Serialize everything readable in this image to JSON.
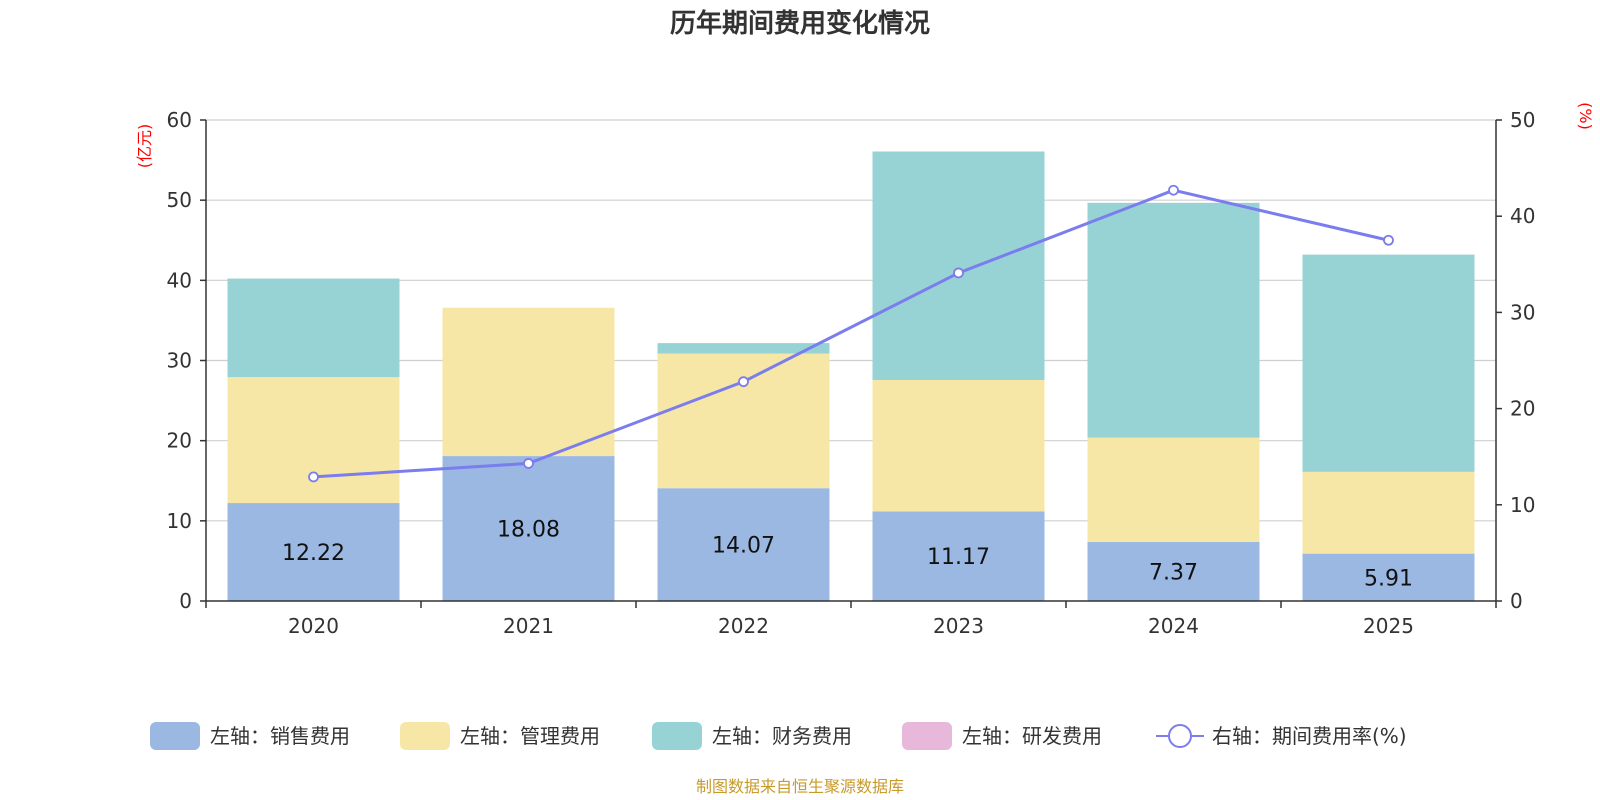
{
  "chart_data": {
    "type": "bar",
    "title": "历年期间费用变化情况",
    "categories": [
      "2020",
      "2021",
      "2022",
      "2023",
      "2024",
      "2025"
    ],
    "left_axis": {
      "unit": "(亿元)",
      "ylim": [
        0,
        60
      ],
      "ticks": [
        0,
        10,
        20,
        30,
        40,
        50,
        60
      ]
    },
    "right_axis": {
      "unit": "(%)",
      "ylim": [
        0,
        50
      ],
      "ticks": [
        0,
        10,
        20,
        30,
        40,
        50
      ]
    },
    "series": [
      {
        "name": "左轴：销售费用",
        "kind": "bar",
        "axis": "left",
        "color": "#9bb8e3",
        "values": [
          12.22,
          18.08,
          14.07,
          11.17,
          7.37,
          5.91
        ],
        "labels": [
          "12.22",
          "18.08",
          "14.07",
          "11.17",
          "7.37",
          "5.91"
        ]
      },
      {
        "name": "左轴：管理费用",
        "kind": "bar",
        "axis": "left",
        "color": "#f7e7a6",
        "values": [
          15.7,
          18.5,
          16.8,
          16.4,
          13.0,
          10.2
        ]
      },
      {
        "name": "左轴：财务费用",
        "kind": "bar",
        "axis": "left",
        "color": "#97d3d4",
        "values": [
          12.3,
          0,
          1.3,
          28.5,
          29.3,
          27.1
        ]
      },
      {
        "name": "左轴：研发费用",
        "kind": "bar",
        "axis": "left",
        "color": "#e8b8da",
        "values": [
          0,
          0,
          0,
          0,
          0,
          0
        ]
      },
      {
        "name": "右轴：期间费用率(%)",
        "kind": "line",
        "axis": "right",
        "color": "#7b7ced",
        "values": [
          12.9,
          14.3,
          22.8,
          34.1,
          42.7,
          37.5
        ]
      }
    ],
    "legend_position": "bottom",
    "grid": true
  },
  "source_note": "制图数据来自恒生聚源数据库"
}
